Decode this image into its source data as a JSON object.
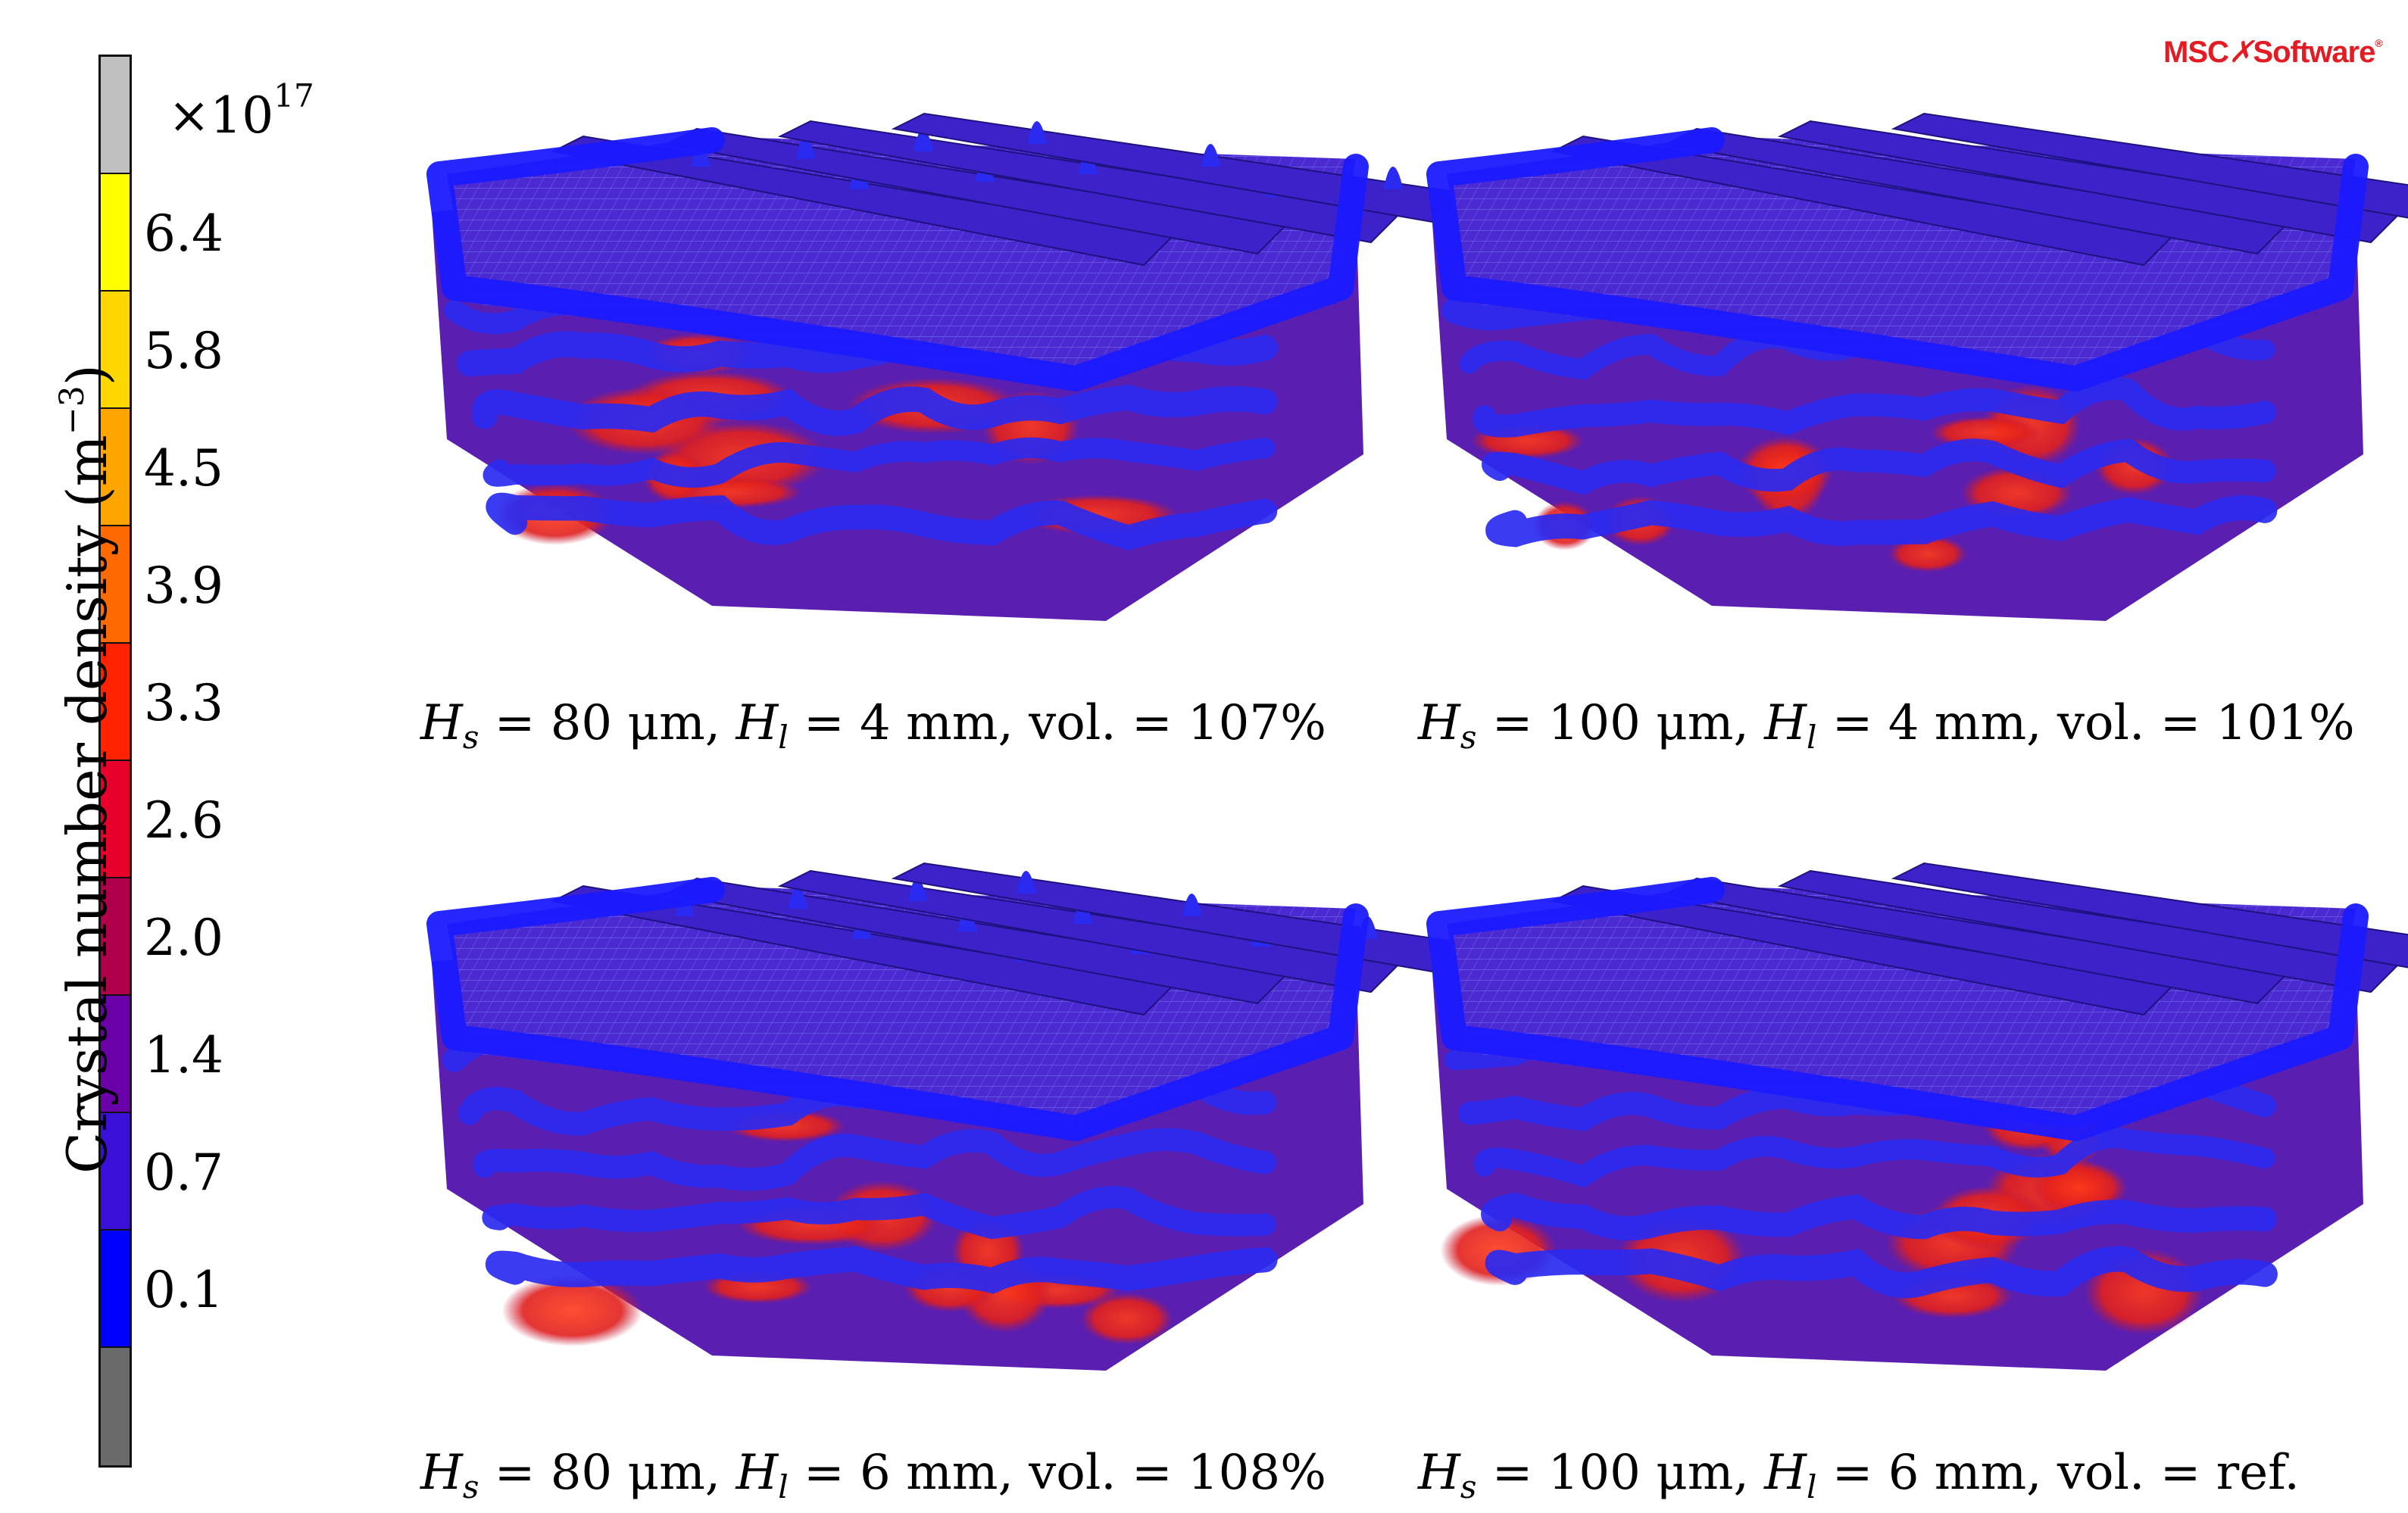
{
  "colorbar": {
    "multiplier_base": "×10",
    "multiplier_exp": "17",
    "title": "Crystal number density (m",
    "title_unit_exp": "−3",
    "title_close": ")",
    "ticks": [
      "6.4",
      "5.8",
      "4.5",
      "3.9",
      "3.3",
      "2.6",
      "2.0",
      "1.4",
      "0.7",
      "0.1"
    ],
    "colors": [
      "#c0c0c0",
      "#ffff00",
      "#ffd700",
      "#ffa500",
      "#ff6a00",
      "#ff2200",
      "#e8002a",
      "#b0004a",
      "#6a00a8",
      "#3a10d8",
      "#0000ff",
      "#6a6a6a"
    ]
  },
  "logo": {
    "left": "MSC",
    "right": "Software",
    "tm": "®"
  },
  "panels": [
    {
      "hs_val": "80",
      "hl_val": "4",
      "vol": "107%"
    },
    {
      "hs_val": "100",
      "hl_val": "4",
      "vol": "101%"
    },
    {
      "hs_val": "80",
      "hl_val": "6",
      "vol": "108%"
    },
    {
      "hs_val": "100",
      "hl_val": "6",
      "vol": "ref."
    }
  ],
  "caption_parts": {
    "hs_sym": "H",
    "hs_sub": "s",
    "hs_unit": "μm",
    "hl_sym": "H",
    "hl_sub": "l",
    "hl_unit": "mm",
    "vol_label": "vol. ="
  }
}
